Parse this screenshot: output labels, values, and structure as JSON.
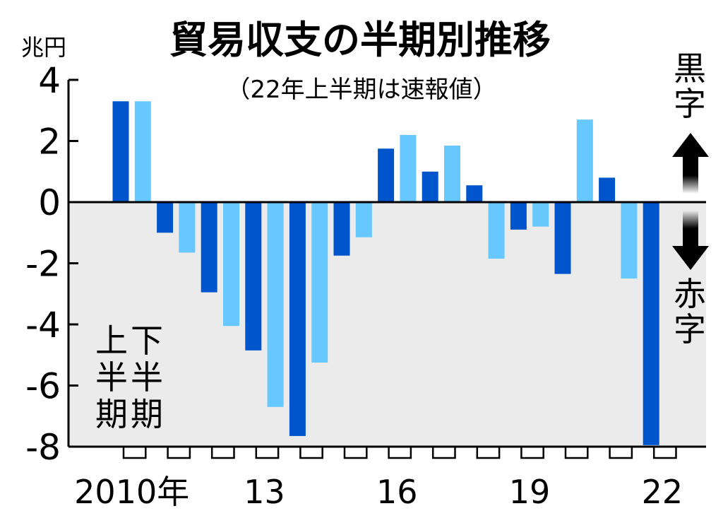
{
  "chart_data": {
    "type": "bar",
    "title": "貿易収支の半期別推移",
    "subtitle": "（22年上半期は速報値）",
    "unit": "兆円",
    "ylim": [
      -8,
      4
    ],
    "y_ticks": [
      "4",
      "2",
      "0",
      "-2",
      "-4",
      "-6",
      "-8"
    ],
    "x_tick_labels": [
      {
        "label": "2010年",
        "index": 0
      },
      {
        "label": "13",
        "index": 6
      },
      {
        "label": "16",
        "index": 12
      },
      {
        "label": "19",
        "index": 18
      },
      {
        "label": "22",
        "index": 24
      }
    ],
    "legend": {
      "first_half": "上半期",
      "second_half": "下半期"
    },
    "surplus_label": "黒字",
    "deficit_label": "赤字",
    "colors": {
      "first_half": "#0055cc",
      "second_half": "#66c8ff",
      "negative_area": "#ebebeb"
    },
    "categories": [
      "2010上",
      "2010下",
      "2011上",
      "2011下",
      "2012上",
      "2012下",
      "2013上",
      "2013下",
      "2014上",
      "2014下",
      "2015上",
      "2015下",
      "2016上",
      "2016下",
      "2017上",
      "2017下",
      "2018上",
      "2018下",
      "2019上",
      "2019下",
      "2020上",
      "2020下",
      "2021上",
      "2021下",
      "2022上"
    ],
    "values": [
      3.3,
      3.3,
      -1.0,
      -1.65,
      -2.95,
      -4.05,
      -4.85,
      -6.7,
      -7.65,
      -5.25,
      -1.75,
      -1.15,
      1.75,
      2.2,
      1.0,
      1.85,
      0.55,
      -1.85,
      -0.9,
      -0.8,
      -2.35,
      2.7,
      0.8,
      -2.5,
      -7.95
    ]
  }
}
